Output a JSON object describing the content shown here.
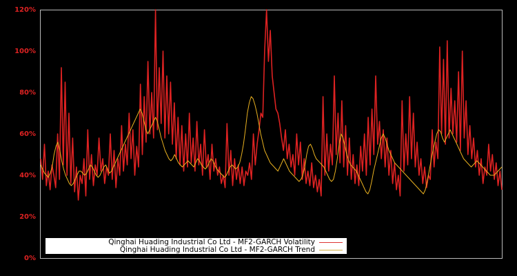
{
  "chart_data": {
    "type": "line",
    "title": "",
    "xlabel": "",
    "ylabel": "",
    "ylim": [
      0,
      120
    ],
    "y_ticks": [
      "0%",
      "20%",
      "40%",
      "60%",
      "80%",
      "100%",
      "120%"
    ],
    "y_tick_values": [
      0,
      20,
      40,
      60,
      80,
      100,
      120
    ],
    "grid": false,
    "legend_position": "lower left",
    "background": "#000000",
    "series": [
      {
        "name": "Qinghai Huading Industrial Co Ltd - MF2-GARCH Volatility",
        "color": "#dd2222",
        "values": [
          48,
          38,
          55,
          35,
          42,
          33,
          45,
          40,
          34,
          60,
          38,
          92,
          45,
          85,
          40,
          70,
          36,
          58,
          32,
          44,
          28,
          40,
          36,
          48,
          30,
          62,
          38,
          50,
          35,
          45,
          40,
          58,
          42,
          48,
          36,
          44,
          40,
          60,
          38,
          52,
          34,
          48,
          40,
          64,
          42,
          55,
          45,
          70,
          48,
          62,
          40,
          54,
          44,
          84,
          50,
          78,
          56,
          95,
          60,
          80,
          58,
          120,
          62,
          92,
          65,
          100,
          58,
          88,
          60,
          85,
          55,
          75,
          48,
          68,
          45,
          64,
          42,
          60,
          44,
          70,
          46,
          58,
          42,
          66,
          45,
          55,
          40,
          62,
          44,
          50,
          38,
          55,
          42,
          48,
          40,
          44,
          36,
          40,
          34,
          65,
          40,
          52,
          35,
          48,
          38,
          45,
          36,
          44,
          35,
          42,
          40,
          46,
          38,
          60,
          45,
          55,
          62,
          70,
          68,
          100,
          120,
          95,
          110,
          88,
          80,
          72,
          70,
          65,
          58,
          52,
          62,
          48,
          55,
          44,
          50,
          40,
          60,
          45,
          56,
          38,
          48,
          36,
          42,
          35,
          46,
          34,
          40,
          32,
          38,
          30,
          78,
          40,
          60,
          42,
          55,
          45,
          88,
          50,
          70,
          46,
          76,
          44,
          64,
          40,
          58,
          38,
          50,
          36,
          45,
          35,
          54,
          42,
          60,
          40,
          68,
          45,
          72,
          50,
          88,
          55,
          66,
          48,
          62,
          44,
          58,
          40,
          52,
          36,
          46,
          33,
          40,
          30,
          76,
          42,
          60,
          45,
          78,
          48,
          70,
          44,
          56,
          40,
          48,
          36,
          44,
          34,
          40,
          38,
          62,
          44,
          56,
          48,
          102,
          60,
          96,
          55,
          105,
          58,
          82,
          60,
          76,
          56,
          90,
          52,
          100,
          58,
          76,
          50,
          64,
          48,
          58,
          44,
          52,
          40,
          48,
          36,
          44,
          40,
          55,
          42,
          50,
          38,
          46,
          35,
          42,
          33
        ],
        "description": "Daily volatility estimate, highly spiky, ranging roughly 25%-120%"
      },
      {
        "name": "Qinghai Huading Industrial Co Ltd - MF2-GARCH Trend",
        "color": "#e8b020",
        "values": [
          45,
          43,
          41,
          40,
          39,
          41,
          44,
          50,
          54,
          56,
          52,
          47,
          43,
          40,
          38,
          36,
          35,
          36,
          38,
          40,
          42,
          42,
          41,
          40,
          41,
          43,
          45,
          44,
          42,
          40,
          39,
          40,
          42,
          44,
          45,
          43,
          41,
          42,
          44,
          46,
          48,
          50,
          52,
          54,
          56,
          58,
          60,
          62,
          64,
          66,
          68,
          70,
          72,
          70,
          66,
          62,
          60,
          62,
          64,
          66,
          68,
          66,
          62,
          58,
          55,
          52,
          50,
          48,
          47,
          48,
          50,
          48,
          46,
          45,
          44,
          45,
          46,
          47,
          46,
          45,
          44,
          46,
          48,
          47,
          45,
          44,
          43,
          44,
          46,
          48,
          47,
          45,
          43,
          42,
          41,
          40,
          39,
          40,
          42,
          44,
          45,
          44,
          43,
          44,
          46,
          50,
          55,
          62,
          70,
          75,
          78,
          77,
          74,
          70,
          65,
          60,
          56,
          52,
          50,
          48,
          46,
          45,
          44,
          43,
          42,
          44,
          46,
          48,
          46,
          44,
          42,
          41,
          40,
          39,
          38,
          37,
          38,
          40,
          44,
          50,
          54,
          55,
          53,
          50,
          48,
          47,
          46,
          45,
          44,
          42,
          40,
          38,
          37,
          38,
          42,
          48,
          55,
          60,
          58,
          54,
          50,
          47,
          45,
          44,
          43,
          42,
          40,
          38,
          36,
          34,
          32,
          31,
          33,
          37,
          42,
          46,
          50,
          54,
          58,
          60,
          58,
          55,
          52,
          50,
          48,
          46,
          45,
          44,
          43,
          42,
          41,
          40,
          39,
          38,
          37,
          36,
          35,
          34,
          33,
          32,
          31,
          33,
          37,
          42,
          47,
          52,
          56,
          60,
          62,
          61,
          58,
          56,
          58,
          60,
          62,
          60,
          58,
          56,
          54,
          52,
          50,
          48,
          47,
          46,
          45,
          44,
          45,
          46,
          47,
          46,
          45,
          44,
          43,
          42,
          41,
          40,
          40,
          40,
          41,
          42,
          43,
          44
        ],
        "description": "Smoothed trend component, ranging roughly 30%-78%"
      }
    ]
  },
  "legend": {
    "items": [
      {
        "label": "Qinghai Huading Industrial Co Ltd - MF2-GARCH Volatility",
        "color": "#dd2222"
      },
      {
        "label": "Qinghai Huading Industrial Co Ltd - MF2-GARCH Trend",
        "color": "#e8b020"
      }
    ]
  }
}
